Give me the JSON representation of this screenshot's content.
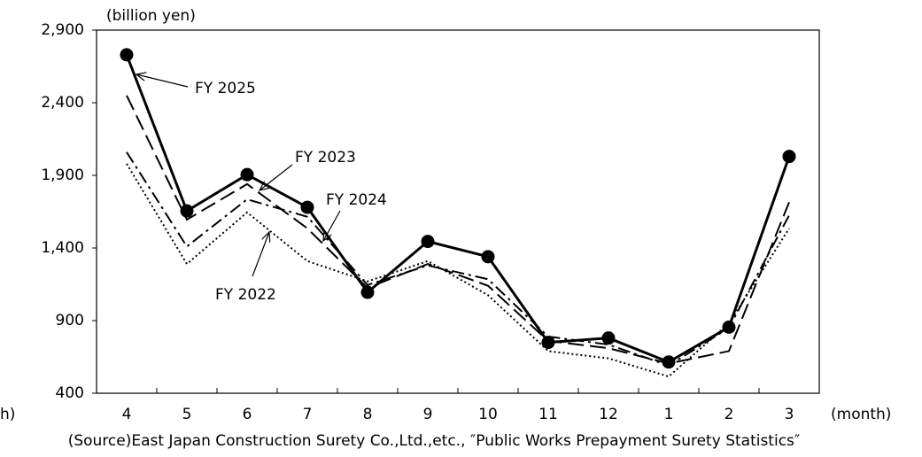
{
  "chart_data": {
    "type": "line",
    "y_unit_label": "(billion yen)",
    "x_unit_label": "(month)",
    "left_fragment": "h)",
    "source": "(Source)East Japan Construction Surety Co.,Ltd.,etc., ″Public Works Prepayment Surety Statistics″",
    "categories": [
      "4",
      "5",
      "6",
      "7",
      "8",
      "9",
      "10",
      "11",
      "12",
      "1",
      "2",
      "3"
    ],
    "series": [
      {
        "name": "FY 2025",
        "color": "#000000",
        "style": "solid",
        "markers": true,
        "values": [
          2730,
          1655,
          1905,
          1680,
          1095,
          1445,
          1340,
          750,
          780,
          615,
          855,
          2030
        ]
      },
      {
        "name": "FY 2024",
        "color": "#000000",
        "style": "dashed",
        "markers": false,
        "values": [
          2450,
          1595,
          1840,
          1535,
          1125,
          1290,
          1140,
          760,
          710,
          605,
          690,
          1715
        ]
      },
      {
        "name": "FY 2023",
        "color": "#000000",
        "style": "dashdot",
        "markers": false,
        "values": [
          2060,
          1410,
          1735,
          1615,
          1145,
          1280,
          1185,
          790,
          735,
          590,
          850,
          1625
        ]
      },
      {
        "name": "FY 2022",
        "color": "#000000",
        "style": "dotted",
        "markers": false,
        "values": [
          1980,
          1290,
          1645,
          1310,
          1170,
          1310,
          1075,
          690,
          640,
          515,
          880,
          1535
        ]
      }
    ],
    "ylim": [
      400,
      2900
    ],
    "yticks": [
      {
        "value": 400,
        "label": "400"
      },
      {
        "value": 900,
        "label": "900"
      },
      {
        "value": 1400,
        "label": "1,400"
      },
      {
        "value": 1900,
        "label": "1,900"
      },
      {
        "value": 2400,
        "label": "2,400"
      },
      {
        "value": 2900,
        "label": "2,900"
      }
    ]
  }
}
